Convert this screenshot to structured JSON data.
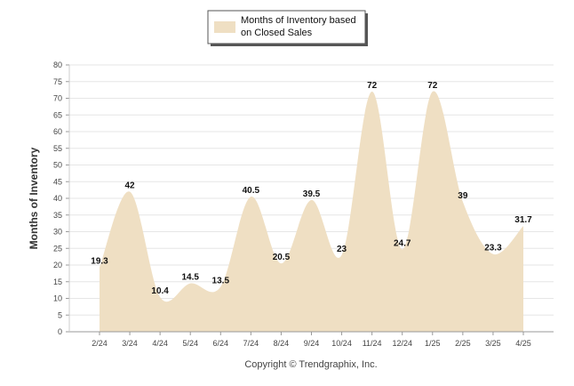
{
  "chart_data": {
    "type": "area",
    "categories": [
      "2/24",
      "3/24",
      "4/24",
      "5/24",
      "6/24",
      "7/24",
      "8/24",
      "9/24",
      "10/24",
      "11/24",
      "12/24",
      "1/25",
      "2/25",
      "3/25",
      "4/25"
    ],
    "series": [
      {
        "name": "Months of Inventory based on Closed Sales",
        "values": [
          19.3,
          42,
          10.4,
          14.5,
          13.5,
          40.5,
          20.5,
          39.5,
          23,
          72,
          24.7,
          72,
          39,
          23.3,
          31.7
        ]
      }
    ],
    "data_labels": [
      "19.3",
      "42",
      "10.4",
      "14.5",
      "13.5",
      "40.5",
      "20.5",
      "39.5",
      "23",
      "72",
      "24.7",
      "72",
      "39",
      "23.3",
      "31.7"
    ],
    "ylabel": "Months of Inventory",
    "ylim": [
      0,
      80
    ],
    "yticks": [
      0,
      5,
      10,
      15,
      20,
      25,
      30,
      35,
      40,
      45,
      50,
      55,
      60,
      65,
      70,
      75,
      80
    ],
    "grid": true,
    "legend_position": "top-center",
    "fill_color": "#efdfc3",
    "grid_color": "#e6e6e6",
    "footer": "Copyright © Trendgraphix, Inc."
  },
  "legend": {
    "line1": "Months of Inventory based",
    "line2": "on Closed Sales"
  }
}
